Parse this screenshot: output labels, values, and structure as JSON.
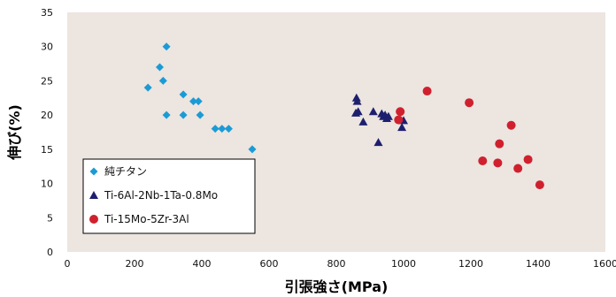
{
  "chart_data": {
    "type": "scatter",
    "xlabel": "引張強さ(MPa)",
    "ylabel": "伸び(%)",
    "xlim": [
      0,
      1600
    ],
    "ylim": [
      0,
      35
    ],
    "xticks": [
      0,
      200,
      400,
      600,
      800,
      1000,
      1200,
      1400,
      1600
    ],
    "yticks": [
      0,
      5,
      10,
      15,
      20,
      25,
      30,
      35
    ],
    "grid": false,
    "legend_position": "bottom-left",
    "colors": {
      "plot_background": "#ece5e0",
      "series_1": "#1b9bd6",
      "series_2": "#1d1f6e",
      "series_3": "#d0202e"
    },
    "series": [
      {
        "name": "純チタン",
        "marker": "diamond",
        "points": [
          [
            295,
            30
          ],
          [
            275,
            27
          ],
          [
            285,
            25
          ],
          [
            240,
            24
          ],
          [
            345,
            23
          ],
          [
            375,
            22
          ],
          [
            390,
            22
          ],
          [
            295,
            20
          ],
          [
            345,
            20
          ],
          [
            395,
            20
          ],
          [
            440,
            18
          ],
          [
            460,
            18
          ],
          [
            480,
            18
          ],
          [
            550,
            15
          ]
        ]
      },
      {
        "name": "Ti-6Al-2Nb-1Ta-0.8Mo",
        "marker": "triangle",
        "points": [
          [
            860,
            22.5
          ],
          [
            862,
            22
          ],
          [
            858,
            20.3
          ],
          [
            865,
            20.5
          ],
          [
            910,
            20.5
          ],
          [
            880,
            19
          ],
          [
            935,
            20.2
          ],
          [
            940,
            19.8
          ],
          [
            945,
            20
          ],
          [
            950,
            19.5
          ],
          [
            955,
            19.8
          ],
          [
            1000,
            19.2
          ],
          [
            995,
            18.2
          ],
          [
            925,
            16
          ]
        ]
      },
      {
        "name": "Ti-15Mo-5Zr-3Al",
        "marker": "circle",
        "points": [
          [
            1070,
            23.5
          ],
          [
            990,
            20.5
          ],
          [
            985,
            19.3
          ],
          [
            1195,
            21.8
          ],
          [
            1320,
            18.5
          ],
          [
            1285,
            15.8
          ],
          [
            1235,
            13.3
          ],
          [
            1280,
            13
          ],
          [
            1340,
            12.2
          ],
          [
            1370,
            13.5
          ],
          [
            1405,
            9.8
          ]
        ]
      }
    ]
  }
}
